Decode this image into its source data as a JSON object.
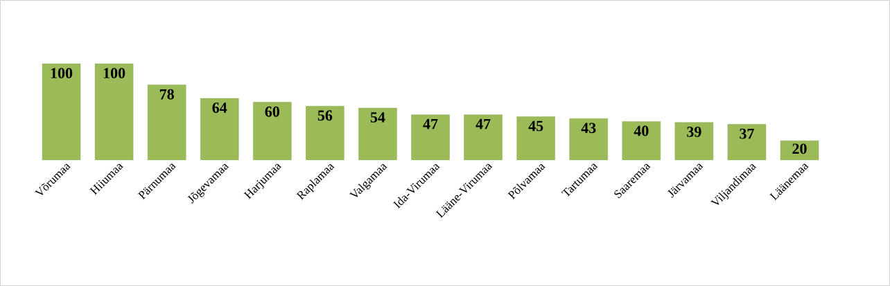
{
  "chart_data": {
    "type": "bar",
    "categories": [
      "Võrumaa",
      "Hiiumaa",
      "Pärnumaa",
      "Jõgevamaa",
      "Harjumaa",
      "Raplamaa",
      "Valgamaa",
      "Ida-Virumaa",
      "Lääne-Virumaa",
      "Põlvamaa",
      "Tartumaa",
      "Saaremaa",
      "Järvamaa",
      "Viljandimaa",
      "Läänemaa"
    ],
    "values": [
      100,
      100,
      78,
      64,
      60,
      56,
      54,
      47,
      47,
      45,
      43,
      40,
      39,
      37,
      20
    ],
    "color": "#9bbb59",
    "data_labels": true
  }
}
